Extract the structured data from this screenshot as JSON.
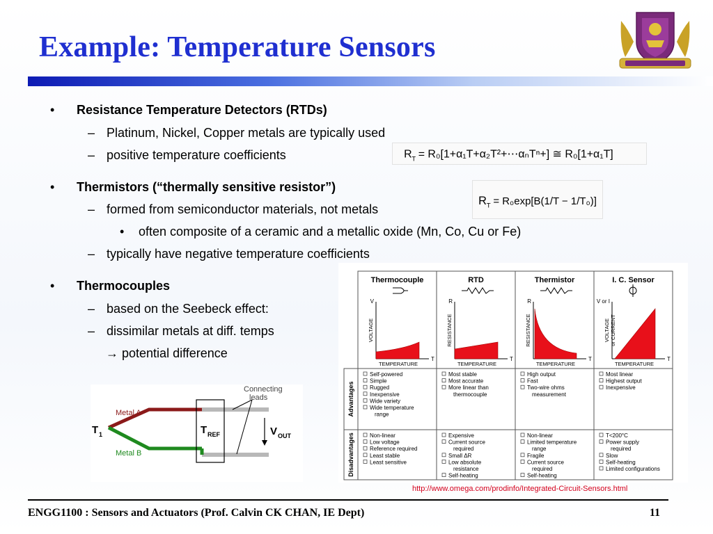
{
  "slide": {
    "title": "Example: Temperature Sensors",
    "footer": "ENGG1100 : Sensors and Actuators (Prof. Calvin CK CHAN, IE Dept)",
    "page_number": "11",
    "source_url": "http://www.omega.com/prodinfo/Integrated-Circuit-Sensors.html"
  },
  "bullets": [
    {
      "level": 1,
      "text": "Resistance Temperature Detectors (RTDs)"
    },
    {
      "level": 2,
      "text": "Platinum, Nickel, Copper metals are typically used"
    },
    {
      "level": 2,
      "text": "positive temperature coefficients"
    },
    {
      "level": 1,
      "text": "Thermistors (“thermally sensitive resistor”)"
    },
    {
      "level": 2,
      "text": "formed from semiconductor materials, not metals"
    },
    {
      "level": 3,
      "text": "often composite of a ceramic and a metallic oxide (Mn, Co, Cu or Fe)"
    },
    {
      "level": 2,
      "text": "typically have negative temperature coefficients"
    },
    {
      "level": 1,
      "text": "Thermocouples"
    },
    {
      "level": 2,
      "text": "based on the Seebeck effect:"
    },
    {
      "level": 2,
      "text": "dissimilar metals at diff. temps"
    },
    {
      "level": 0,
      "text": "potential difference"
    }
  ],
  "symbols": {
    "bullet": "•",
    "dash": "–",
    "arrow": "→"
  },
  "formulas": {
    "rtd": {
      "lhs": "R",
      "lhs_sub": "T",
      "body": "= R₀[1+α₁T+α₂T²+⋯αₙTⁿ+] ≅ R₀[1+α₁T]"
    },
    "thermistor": {
      "lhs": "R",
      "lhs_sub": "T",
      "body": "= R₀exp[B(1/T − 1/T₀)]"
    }
  },
  "comparison": {
    "columns": [
      {
        "name": "Thermocouple",
        "xlabel": "TEMPERATURE",
        "ylabel": "VOLTAGE",
        "yaxis": "V",
        "xaxis": "T",
        "curve": "thermocouple"
      },
      {
        "name": "RTD",
        "xlabel": "TEMPERATURE",
        "ylabel": "RESISTANCE",
        "yaxis": "R",
        "xaxis": "T",
        "curve": "rtd"
      },
      {
        "name": "Thermistor",
        "xlabel": "TEMPERATURE",
        "ylabel": "RESISTANCE",
        "yaxis": "R",
        "xaxis": "T",
        "curve": "thermistor"
      },
      {
        "name": "I. C. Sensor",
        "xlabel": "TEMPERATURE",
        "ylabel": "VOLTAGE",
        "ylabel2": "or CURRENT",
        "yaxis": "V or I",
        "xaxis": "T",
        "curve": "ic"
      }
    ],
    "row_labels": {
      "advantages": "Advantages",
      "disadvantages": "Disadvantages"
    },
    "advantages": [
      [
        "Self-powered",
        "Simple",
        "Rugged",
        "Inexpensive",
        "Wide variety",
        "Wide temperature",
        "range"
      ],
      [
        "Most stable",
        "Most accurate",
        "More linear than",
        "thermocouple"
      ],
      [
        "High output",
        "Fast",
        "Two-wire ohms",
        "measurement"
      ],
      [
        "Most linear",
        "Highest output",
        "Inexpensive"
      ]
    ],
    "disadvantages": [
      [
        "Non-linear",
        "Low voltage",
        "Reference required",
        "Least stable",
        "Least sensitive"
      ],
      [
        "Expensive",
        "Current source",
        "required",
        "Small ΔR",
        "Low absolute",
        "resistance",
        "Self-heating"
      ],
      [
        "Non-linear",
        "Limited temperature",
        "range",
        "Fragile",
        "Current source",
        "required",
        "Self-heating"
      ],
      [
        "T<200°C",
        "Power supply",
        "required",
        "Slow",
        "Self-heating",
        "Limited configurations"
      ]
    ]
  },
  "thermocouple_diagram": {
    "metal_a": "Metal A",
    "metal_b": "Metal B",
    "t1": "T",
    "t1_sub": "1",
    "tref": "T",
    "tref_sub": "REF",
    "vout": "V",
    "vout_sub": "OUT",
    "leads_line1": "Connecting",
    "leads_line2": "leads",
    "colors": {
      "metal_a": "#8b1a1a",
      "metal_b": "#1f8a1f",
      "leads": "#b8b8b8"
    }
  },
  "colors": {
    "title": "#1f2fd0",
    "curve_fill": "#e8101a",
    "link": "#d4001c"
  }
}
